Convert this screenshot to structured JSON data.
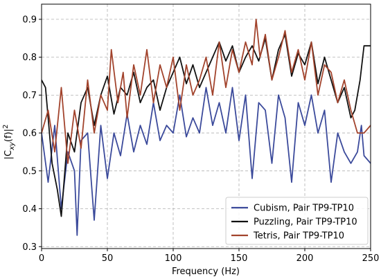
{
  "chart_data": {
    "type": "line",
    "title": "",
    "xlabel": "Frequency (Hz)",
    "ylabel": "|C",
    "ylabel_sub": "xy",
    "ylabel_mid": "(f)|",
    "ylabel_sup": "2",
    "xlim": [
      0,
      250
    ],
    "ylim": [
      0.295,
      0.94
    ],
    "xticks": [
      0,
      50,
      100,
      150,
      200,
      250
    ],
    "xtick_labels": [
      "0",
      "50",
      "100",
      "150",
      "200",
      "250"
    ],
    "yticks": [
      0.3,
      0.4,
      0.5,
      0.6,
      0.7,
      0.8,
      0.9
    ],
    "ytick_labels": [
      "0.3",
      "0.4",
      "0.5",
      "0.6",
      "0.7",
      "0.8",
      "0.9"
    ],
    "grid": true,
    "legend_position": "lower-right",
    "series": [
      {
        "name": "Cubism, Pair TP9-TP10",
        "color": "#3b4a9b",
        "x": [
          0,
          5,
          10,
          15,
          20,
          25,
          27,
          30,
          35,
          40,
          45,
          50,
          55,
          60,
          65,
          70,
          75,
          80,
          85,
          90,
          95,
          100,
          105,
          110,
          115,
          120,
          125,
          130,
          135,
          140,
          145,
          150,
          155,
          160,
          165,
          170,
          175,
          180,
          185,
          190,
          195,
          200,
          205,
          210,
          215,
          220,
          225,
          230,
          235,
          240,
          243,
          245,
          250
        ],
        "y": [
          0.6,
          0.47,
          0.62,
          0.4,
          0.55,
          0.5,
          0.33,
          0.58,
          0.6,
          0.37,
          0.62,
          0.48,
          0.6,
          0.54,
          0.65,
          0.55,
          0.62,
          0.57,
          0.68,
          0.58,
          0.62,
          0.6,
          0.7,
          0.59,
          0.64,
          0.6,
          0.72,
          0.62,
          0.68,
          0.6,
          0.72,
          0.58,
          0.7,
          0.48,
          0.68,
          0.66,
          0.52,
          0.7,
          0.64,
          0.47,
          0.68,
          0.62,
          0.7,
          0.6,
          0.66,
          0.47,
          0.6,
          0.55,
          0.52,
          0.55,
          0.62,
          0.54,
          0.52
        ]
      },
      {
        "name": "Puzzling, Pair TP9-TP10",
        "color": "#111111",
        "x": [
          0,
          3,
          8,
          12,
          15,
          20,
          25,
          30,
          35,
          40,
          45,
          50,
          55,
          60,
          65,
          70,
          75,
          80,
          85,
          90,
          95,
          100,
          105,
          110,
          115,
          120,
          125,
          130,
          135,
          140,
          145,
          150,
          155,
          160,
          165,
          170,
          175,
          180,
          185,
          190,
          195,
          200,
          205,
          210,
          215,
          220,
          225,
          230,
          235,
          238,
          242,
          245,
          250
        ],
        "y": [
          0.74,
          0.72,
          0.52,
          0.45,
          0.38,
          0.6,
          0.55,
          0.68,
          0.72,
          0.62,
          0.7,
          0.75,
          0.65,
          0.72,
          0.7,
          0.76,
          0.68,
          0.72,
          0.74,
          0.66,
          0.72,
          0.76,
          0.8,
          0.73,
          0.78,
          0.72,
          0.76,
          0.8,
          0.84,
          0.79,
          0.83,
          0.76,
          0.8,
          0.83,
          0.79,
          0.85,
          0.74,
          0.82,
          0.86,
          0.75,
          0.81,
          0.78,
          0.84,
          0.73,
          0.8,
          0.74,
          0.68,
          0.72,
          0.64,
          0.66,
          0.74,
          0.83,
          0.83
        ]
      },
      {
        "name": "Tetris, Pair TP9-TP10",
        "color": "#a2432c",
        "x": [
          0,
          5,
          10,
          15,
          20,
          25,
          30,
          35,
          40,
          45,
          50,
          53,
          58,
          62,
          65,
          70,
          75,
          80,
          85,
          90,
          95,
          100,
          105,
          110,
          115,
          120,
          125,
          130,
          135,
          140,
          145,
          150,
          155,
          160,
          163,
          166,
          170,
          175,
          180,
          185,
          190,
          195,
          200,
          205,
          210,
          215,
          220,
          225,
          230,
          235,
          240,
          245,
          250
        ],
        "y": [
          0.6,
          0.66,
          0.55,
          0.72,
          0.52,
          0.66,
          0.56,
          0.74,
          0.6,
          0.7,
          0.66,
          0.82,
          0.68,
          0.76,
          0.64,
          0.78,
          0.7,
          0.82,
          0.68,
          0.78,
          0.72,
          0.8,
          0.66,
          0.78,
          0.7,
          0.74,
          0.8,
          0.7,
          0.84,
          0.72,
          0.82,
          0.76,
          0.84,
          0.78,
          0.9,
          0.8,
          0.86,
          0.74,
          0.8,
          0.87,
          0.76,
          0.82,
          0.74,
          0.84,
          0.7,
          0.78,
          0.76,
          0.68,
          0.74,
          0.66,
          0.6,
          0.6,
          0.62
        ]
      }
    ]
  }
}
